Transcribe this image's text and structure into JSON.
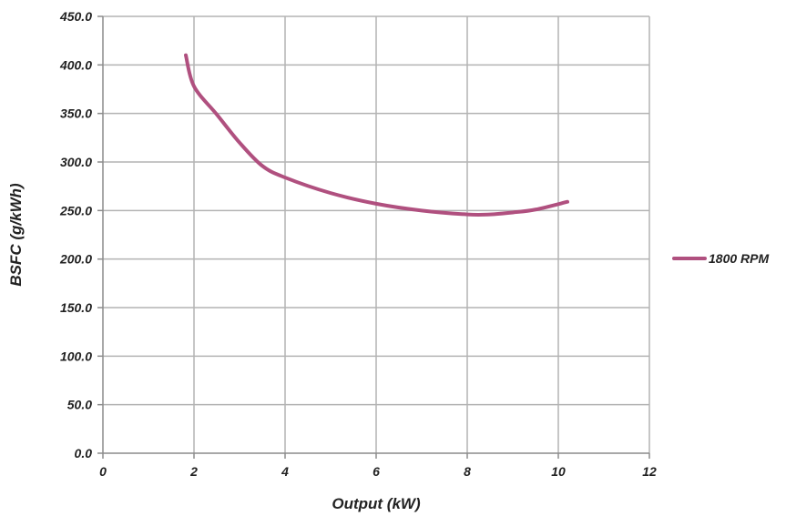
{
  "chart_data": {
    "type": "line",
    "title": "",
    "xlabel": "Output (kW)",
    "ylabel": "BSFC (g/kWh)",
    "xlim": [
      0,
      12
    ],
    "ylim": [
      0,
      450
    ],
    "x_ticks": [
      0,
      2,
      4,
      6,
      8,
      10,
      12
    ],
    "x_tick_labels": [
      "0",
      "2",
      "4",
      "6",
      "8",
      "10",
      "12"
    ],
    "y_ticks": [
      0,
      50,
      100,
      150,
      200,
      250,
      300,
      350,
      400,
      450
    ],
    "y_tick_labels": [
      "0.0",
      "50.0",
      "100.0",
      "150.0",
      "200.0",
      "250.0",
      "300.0",
      "350.0",
      "400.0",
      "450.0"
    ],
    "grid": true,
    "legend_position": "right",
    "series": [
      {
        "name": "1800 RPM",
        "color": "#B0507F",
        "x": [
          1.82,
          2.0,
          2.5,
          3.0,
          3.5,
          4.0,
          5.0,
          6.0,
          7.0,
          8.0,
          8.5,
          9.0,
          9.5,
          10.2
        ],
        "y": [
          410,
          378,
          349,
          320,
          296,
          284,
          268,
          257,
          250,
          246,
          246,
          248,
          251,
          259
        ]
      }
    ]
  }
}
